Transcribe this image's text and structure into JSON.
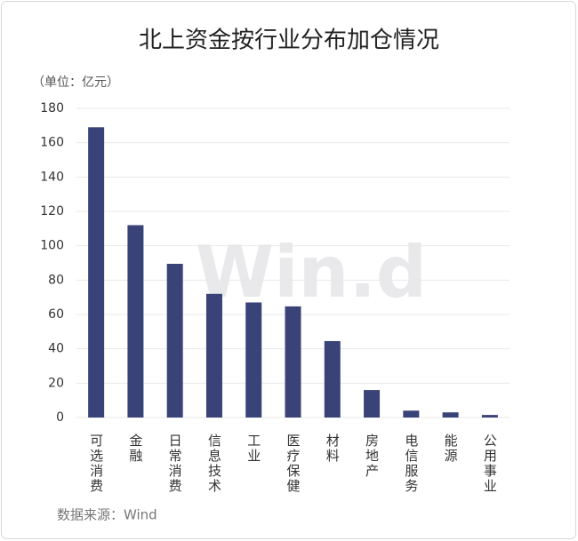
{
  "chart_data": {
    "type": "bar",
    "title": "北上资金按行业分布加仓情况",
    "unit_label": "（单位：亿元）",
    "source": "数据来源：Wind",
    "watermark": "Win.d",
    "categories": [
      "可选消费",
      "金融",
      "日常消费",
      "信息技术",
      "工业",
      "医疗保健",
      "材料",
      "房地产",
      "电信服务",
      "能源",
      "公用事业"
    ],
    "values": [
      169,
      112,
      89.5,
      72,
      67,
      64.7,
      44.5,
      16,
      4,
      3,
      1.5
    ],
    "color": "#394378",
    "ylim": [
      0,
      180
    ],
    "yticks": [
      0,
      20,
      40,
      60,
      80,
      100,
      120,
      140,
      160,
      180
    ],
    "grid": true
  }
}
